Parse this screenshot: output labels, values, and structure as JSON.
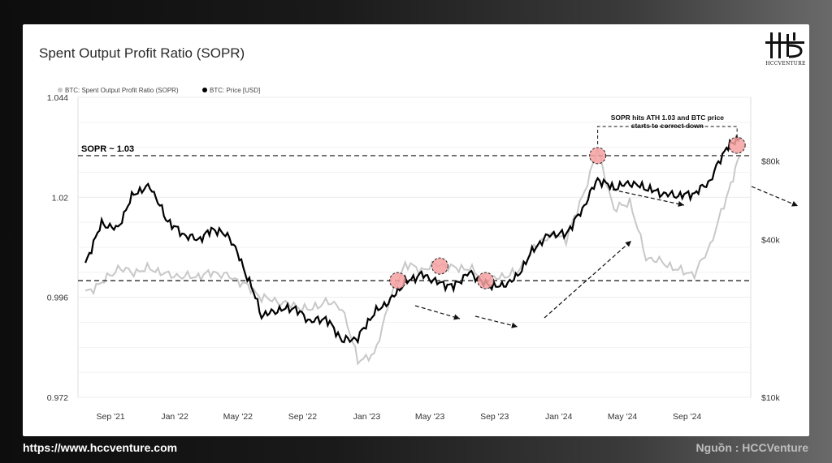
{
  "title": "Spent Output Profit Ratio (SOPR)",
  "logo_text": "HCCVENTURE",
  "footer": {
    "url": "https://www.hccventure.com",
    "source": "Nguồn : HCCVenture"
  },
  "colors": {
    "sopr": "#c8c8c8",
    "price": "#000000",
    "highlight": "#f4a0a0"
  },
  "chart_data": {
    "type": "line",
    "title": "Spent Output Profit Ratio (SOPR)",
    "legend": [
      "BTC: Spent Output Profit Ratio (SOPR)",
      "BTC: Price [USD]"
    ],
    "legend_position": "top-left",
    "grid": true,
    "x_ticks": [
      "Sep '21",
      "Jan '22",
      "May '22",
      "Sep '22",
      "Jan '23",
      "May '23",
      "Sep '23",
      "Jan '24",
      "May '24",
      "Sep '24"
    ],
    "y_left": {
      "ticks": [
        "0.972",
        "0.996",
        "1.02",
        "1.044"
      ],
      "range": [
        0.972,
        1.044
      ]
    },
    "y_right": {
      "ticks": [
        "$10k",
        "$40k",
        "$80k"
      ],
      "scale": "log"
    },
    "series": [
      {
        "name": "BTC: Spent Output Profit Ratio (SOPR)",
        "x": [
          "2021-07-15",
          "2021-08-15",
          "2021-09-15",
          "2021-10-15",
          "2021-11-15",
          "2021-12-15",
          "2022-01-15",
          "2022-02-15",
          "2022-03-15",
          "2022-04-15",
          "2022-05-15",
          "2022-06-15",
          "2022-07-15",
          "2022-08-15",
          "2022-09-15",
          "2022-10-15",
          "2022-11-15",
          "2022-12-15",
          "2023-01-15",
          "2023-02-15",
          "2023-03-15",
          "2023-04-15",
          "2023-05-15",
          "2023-06-15",
          "2023-07-15",
          "2023-08-15",
          "2023-09-15",
          "2023-10-15",
          "2023-11-15",
          "2023-12-15",
          "2024-01-15",
          "2024-02-15",
          "2024-03-15",
          "2024-04-15",
          "2024-05-15",
          "2024-06-15",
          "2024-07-15",
          "2024-08-15",
          "2024-09-15",
          "2024-10-15",
          "2024-11-15",
          "2024-12-10"
        ],
        "values": [
          0.997,
          0.9995,
          1.003,
          1.002,
          1.003,
          1.0015,
          1.001,
          1.001,
          1.002,
          1.001,
          0.999,
          0.996,
          0.995,
          0.994,
          0.993,
          0.995,
          0.9935,
          0.981,
          0.982,
          0.996,
          1.004,
          1.0025,
          1.004,
          1.003,
          1.003,
          1.0,
          1.001,
          1.002,
          1.008,
          1.011,
          1.01,
          1.02,
          1.0315,
          1.017,
          1.019,
          1.0055,
          1.0045,
          1.0025,
          1.0015,
          1.0085,
          1.02,
          1.03
        ]
      },
      {
        "name": "BTC: Price [USD]",
        "x": [
          "2021-07-15",
          "2021-08-15",
          "2021-09-15",
          "2021-10-15",
          "2021-11-15",
          "2021-12-15",
          "2022-01-15",
          "2022-02-15",
          "2022-03-15",
          "2022-04-15",
          "2022-05-15",
          "2022-06-15",
          "2022-07-15",
          "2022-08-15",
          "2022-09-15",
          "2022-10-15",
          "2022-11-15",
          "2022-12-15",
          "2023-01-15",
          "2023-02-15",
          "2023-03-15",
          "2023-04-15",
          "2023-05-15",
          "2023-06-15",
          "2023-07-15",
          "2023-08-15",
          "2023-09-15",
          "2023-10-15",
          "2023-11-15",
          "2023-12-15",
          "2024-01-15",
          "2024-02-15",
          "2024-03-15",
          "2024-04-15",
          "2024-05-15",
          "2024-06-15",
          "2024-07-15",
          "2024-08-15",
          "2024-09-15",
          "2024-10-15",
          "2024-11-15",
          "2024-12-10"
        ],
        "values": [
          32000,
          46000,
          44000,
          60000,
          64000,
          48000,
          42000,
          40000,
          44000,
          41000,
          30000,
          20500,
          21500,
          22000,
          19500,
          20000,
          16500,
          16800,
          21000,
          23500,
          27500,
          29500,
          27500,
          26500,
          30000,
          27000,
          26500,
          29000,
          37000,
          42000,
          42000,
          52000,
          68000,
          63000,
          66000,
          63000,
          60000,
          59000,
          60000,
          67000,
          90000,
          98000
        ]
      }
    ],
    "annotations": {
      "sopr_line_label": "SOPR ~ 1.03",
      "callout": [
        "SOPR hits ATH 1.03 and BTC price",
        "starts to correct down"
      ]
    }
  }
}
